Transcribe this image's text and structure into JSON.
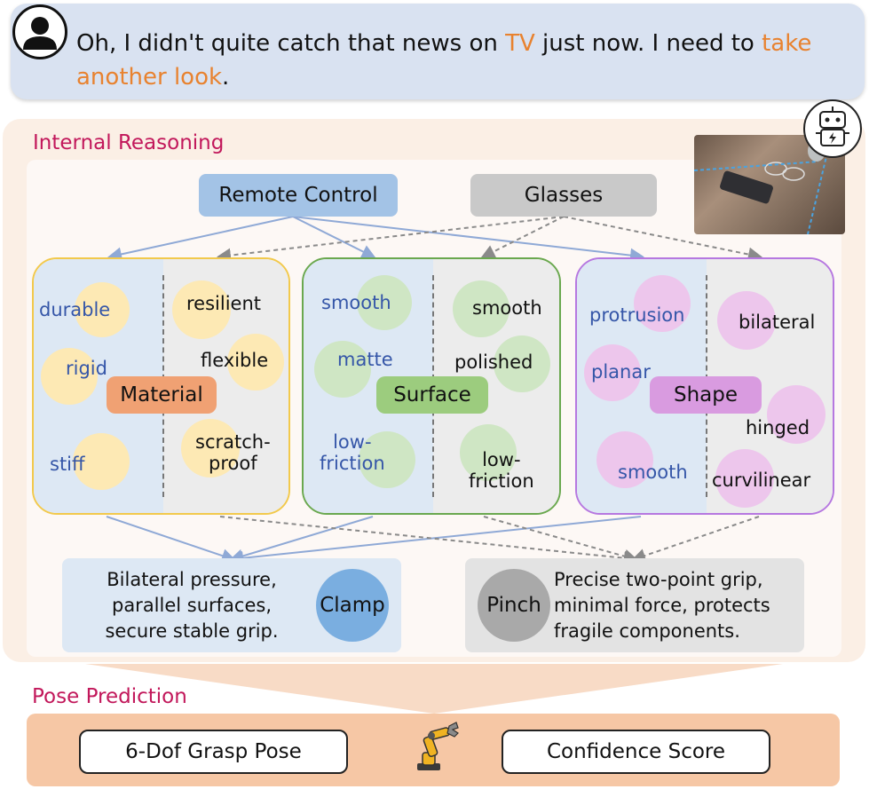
{
  "user_message": {
    "part1": "Oh, I didn't quite catch that news on ",
    "highlight1": "TV",
    "part2": " just now. I need to ",
    "highlight2": "take another look",
    "part3": "."
  },
  "reasoning": {
    "title": "Internal Reasoning",
    "objects": {
      "remote": "Remote Control",
      "glasses": "Glasses"
    },
    "material": {
      "label": "Material",
      "left": [
        "durable",
        "rigid",
        "stiff"
      ],
      "right": [
        "resilient",
        "flexible",
        "scratch-\nproof"
      ]
    },
    "surface": {
      "label": "Surface",
      "left": [
        "smooth",
        "matte",
        "low-\nfriction"
      ],
      "right": [
        "smooth",
        "polished",
        "low-\nfriction"
      ]
    },
    "shape": {
      "label": "Shape",
      "left": [
        "protrusion",
        "planar",
        "smooth"
      ],
      "right": [
        "bilateral",
        "hinged",
        "curvilinear"
      ]
    },
    "clamp": {
      "label": "Clamp",
      "text": "Bilateral pressure,\nparallel surfaces,\nsecure stable grip."
    },
    "pinch": {
      "label": "Pinch",
      "text": "Precise two-point grip,\nminimal force, protects\nfragile components."
    }
  },
  "pose": {
    "title": "Pose Prediction",
    "grasp_pose": "6-Dof Grasp Pose",
    "confidence": "Confidence Score"
  },
  "icons": [
    "user-avatar-icon",
    "robot-icon",
    "robot-arm-icon"
  ],
  "colors": {
    "highlight": "#e8822f",
    "title": "#c2185b",
    "blue_arrow": "#8fa9d6",
    "gray_arrow": "#8a8a8a",
    "material": "#f2c94c",
    "surface": "#6aa84f",
    "shape": "#b678e0"
  }
}
